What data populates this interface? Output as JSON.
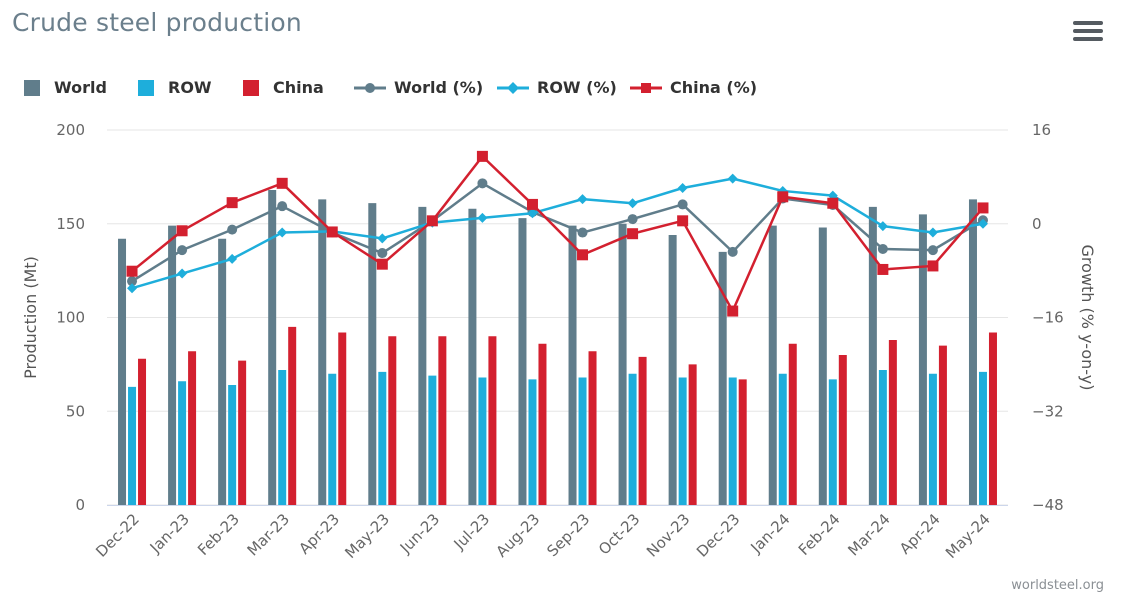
{
  "page": {
    "title": "Crude steel production",
    "credit": "worldsteel.org",
    "menu_icon": "hamburger-menu-icon"
  },
  "colors": {
    "world": "#607d8b",
    "row": "#1eaedb",
    "china": "#d3202f",
    "grid": "#e6e6e6",
    "axis_text": "#666666"
  },
  "legend": [
    {
      "key": "world_bar",
      "label": "World",
      "symbol": "bar",
      "color": "#607d8b"
    },
    {
      "key": "row_bar",
      "label": "ROW",
      "symbol": "bar",
      "color": "#1eaedb"
    },
    {
      "key": "china_bar",
      "label": "China",
      "symbol": "bar",
      "color": "#d3202f"
    },
    {
      "key": "world_pct",
      "label": "World (%)",
      "symbol": "line-circle",
      "color": "#607d8b"
    },
    {
      "key": "row_pct",
      "label": "ROW (%)",
      "symbol": "line-diamond",
      "color": "#1eaedb"
    },
    {
      "key": "china_pct",
      "label": "China (%)",
      "symbol": "line-square",
      "color": "#d3202f"
    }
  ],
  "chart_data": {
    "type": "bar",
    "categories": [
      "Dec-22",
      "Jan-23",
      "Feb-23",
      "Mar-23",
      "Apr-23",
      "May-23",
      "Jun-23",
      "Jul-23",
      "Aug-23",
      "Sep-23",
      "Oct-23",
      "Nov-23",
      "Dec-23",
      "Jan-24",
      "Feb-24",
      "Mar-24",
      "Apr-24",
      "May-24"
    ],
    "ylabel": "Production (Mt)",
    "ylabel_right": "Growth (% y-on-y)",
    "ylim": [
      0,
      200
    ],
    "yticks": [
      "0",
      "50",
      "100",
      "150",
      "200"
    ],
    "ylim_right": [
      -48,
      16
    ],
    "yticks_right": [
      "−48",
      "−32",
      "−16",
      "0",
      "16"
    ],
    "grid": true,
    "legend_position": "top-left",
    "bar_series": [
      {
        "name": "World",
        "values": [
          142,
          149,
          142,
          168,
          163,
          161,
          159,
          158,
          153,
          149,
          150,
          144,
          135,
          149,
          148,
          159,
          155,
          163
        ]
      },
      {
        "name": "ROW",
        "values": [
          63,
          66,
          64,
          72,
          70,
          71,
          69,
          68,
          67,
          68,
          70,
          68,
          68,
          70,
          67,
          72,
          70,
          71
        ]
      },
      {
        "name": "China",
        "values": [
          78,
          82,
          77,
          95,
          92,
          90,
          90,
          90,
          86,
          82,
          79,
          75,
          67,
          86,
          80,
          88,
          85,
          92
        ]
      }
    ],
    "line_series": [
      {
        "name": "World (%)",
        "marker": "circle",
        "values": [
          -9.8,
          -4.5,
          -1.0,
          3.0,
          -1.5,
          -5.0,
          0.5,
          6.9,
          2.0,
          -1.5,
          0.8,
          3.3,
          -4.8,
          4.3,
          3.2,
          -4.3,
          -4.5,
          0.6
        ]
      },
      {
        "name": "ROW (%)",
        "marker": "diamond",
        "values": [
          -11.0,
          -8.5,
          -6.0,
          -1.5,
          -1.3,
          -2.5,
          0.2,
          1.0,
          1.8,
          4.2,
          3.5,
          6.1,
          7.7,
          5.6,
          4.8,
          -0.4,
          -1.5,
          0.0
        ]
      },
      {
        "name": "China (%)",
        "marker": "square",
        "values": [
          -8.1,
          -1.2,
          3.6,
          6.9,
          -1.4,
          -6.9,
          0.5,
          11.5,
          3.3,
          -5.3,
          -1.7,
          0.5,
          -14.9,
          4.6,
          3.5,
          -7.8,
          -7.2,
          2.7
        ]
      }
    ]
  }
}
